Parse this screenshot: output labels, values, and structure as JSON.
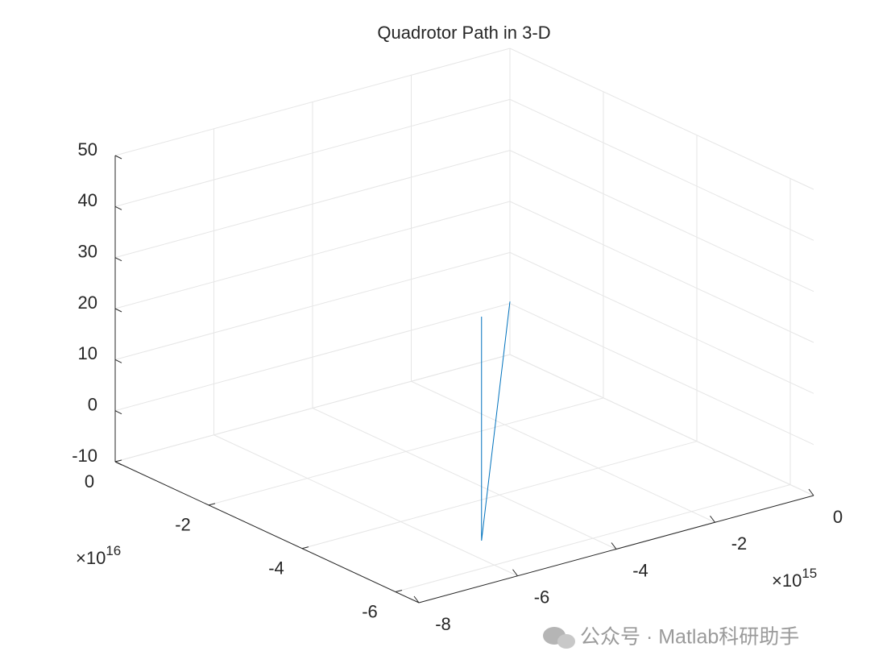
{
  "chart_data": {
    "type": "line3d",
    "title": "Quadrotor Path in 3-D",
    "series": [
      {
        "color": "#0072bd",
        "x": [
          0,
          -5490000000000000.0,
          -5490000000000000.0
        ],
        "y": [
          0,
          -5.19e+16,
          -5.19e+16
        ],
        "z": [
          0.4,
          -10,
          33.9
        ]
      }
    ],
    "xlim": [
      -8000000000000000.0,
      0
    ],
    "ylim": [
      -6.5e+16,
      0
    ],
    "zlim": [
      -10,
      50
    ],
    "xticks": [
      {
        "value": -8000000000000000.0,
        "label": "-8"
      },
      {
        "value": -6000000000000000.0,
        "label": "-6"
      },
      {
        "value": -4000000000000000.0,
        "label": "-4"
      },
      {
        "value": -2000000000000000.0,
        "label": "-2"
      },
      0
    ],
    "yticks": [
      {
        "value": -6e+16,
        "label": "-6"
      },
      {
        "value": -4e+16,
        "label": "-4"
      },
      {
        "value": -2e+16,
        "label": "-2"
      },
      0
    ],
    "zticks": [
      -10,
      0,
      10,
      20,
      30,
      40,
      50
    ],
    "x_multiplier": "×10",
    "x_exponent": "15",
    "y_multiplier": "×10",
    "y_exponent": "16",
    "grid": true,
    "watermark": "公众号 · Matlab科研助手"
  }
}
